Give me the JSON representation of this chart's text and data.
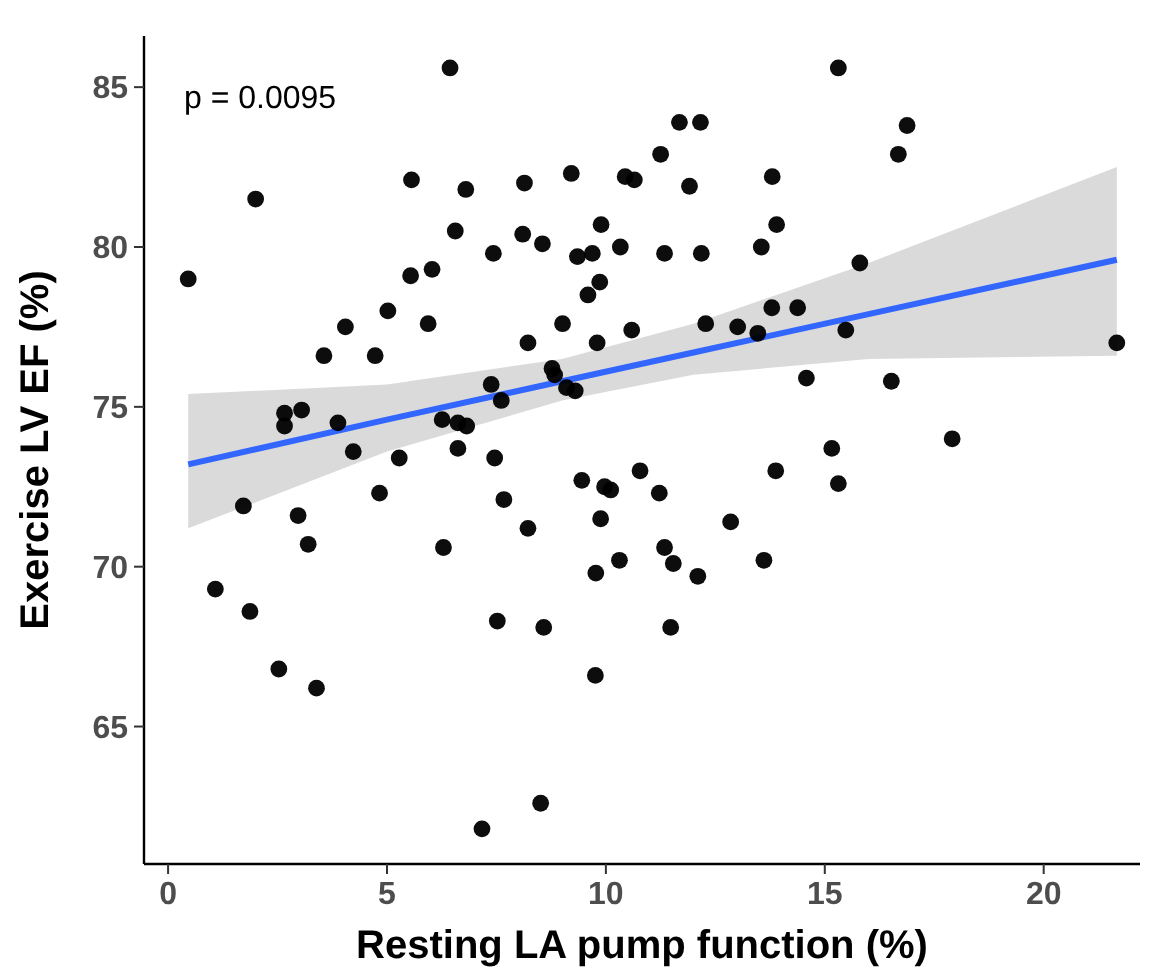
{
  "chart_data": {
    "type": "scatter",
    "xlabel": "Resting LA pump function (%)",
    "ylabel": "Exercise LV EF (%)",
    "annotations": [
      "p = 0.0095"
    ],
    "xlim": [
      -0.55,
      22.2
    ],
    "xticks": [
      0,
      5,
      10,
      15,
      20
    ],
    "ylim": [
      60.7,
      86.6
    ],
    "yticks": [
      65,
      70,
      75,
      80,
      85
    ],
    "grid": false,
    "series": [
      {
        "type": "line",
        "color": "#3366ff",
        "x": [
          0.46,
          5,
          9,
          12,
          16,
          21.67
        ],
        "values": [
          73.2,
          74.6,
          75.8,
          76.7,
          77.9,
          79.6
        ],
        "lower": [
          71.2,
          73.6,
          75.2,
          76.0,
          76.5,
          76.6
        ],
        "upper": [
          75.4,
          75.7,
          76.5,
          77.6,
          79.5,
          82.5
        ]
      },
      {
        "color": "#000000",
        "marker": "circle",
        "x": [
          0.46,
          6.44,
          2.0,
          5.56,
          6.8,
          8.14,
          9.21,
          10.44,
          10.65,
          6.56,
          8.1,
          8.55,
          7.43,
          9.89,
          9.35,
          9.69,
          10.33,
          5.54,
          6.03,
          9.86,
          9.59,
          5.02,
          4.05,
          5.94,
          3.56,
          4.73,
          8.22,
          9.01,
          9.8,
          10.59,
          7.38,
          7.61,
          8.77,
          8.83,
          9.1,
          9.3,
          2.66,
          3.05,
          2.66,
          3.88,
          6.26,
          6.62,
          6.82,
          4.23,
          5.28,
          6.62,
          7.46,
          1.72,
          4.83,
          2.97,
          3.2,
          6.29,
          7.67,
          8.22,
          9.45,
          9.97,
          10.11,
          10.78,
          9.88,
          10.31,
          9.77,
          1.08,
          1.87,
          2.53,
          3.39,
          7.52,
          8.58,
          9.76,
          8.51,
          7.17,
          15.31,
          11.68,
          12.16,
          16.88,
          16.68,
          11.25,
          11.91,
          13.8,
          13.9,
          11.34,
          12.18,
          13.55,
          15.8,
          12.28,
          13.01,
          13.47,
          13.79,
          14.38,
          15.48,
          21.67,
          14.58,
          16.52,
          15.16,
          17.91,
          13.88,
          15.31,
          11.22,
          12.85,
          11.34,
          11.54,
          12.1,
          13.61,
          11.48
        ],
        "values": [
          79.0,
          85.6,
          81.5,
          82.1,
          81.8,
          82.0,
          82.3,
          82.2,
          82.1,
          80.5,
          80.4,
          80.1,
          79.8,
          80.7,
          79.7,
          79.8,
          80.0,
          79.1,
          79.3,
          78.9,
          78.5,
          78.0,
          77.5,
          77.6,
          76.6,
          76.6,
          77.0,
          77.6,
          77.0,
          77.4,
          75.7,
          75.2,
          76.2,
          76.0,
          75.6,
          75.5,
          74.8,
          74.9,
          74.4,
          74.5,
          74.6,
          74.5,
          74.4,
          73.6,
          73.4,
          73.7,
          73.4,
          71.9,
          72.3,
          71.6,
          70.7,
          70.6,
          72.1,
          71.2,
          72.7,
          72.5,
          72.4,
          73.0,
          71.5,
          70.2,
          69.8,
          69.3,
          68.6,
          66.8,
          66.2,
          68.3,
          68.1,
          66.6,
          62.6,
          61.8,
          85.6,
          83.9,
          83.9,
          83.8,
          82.9,
          82.9,
          81.9,
          82.2,
          80.7,
          79.8,
          79.8,
          80.0,
          79.5,
          77.6,
          77.5,
          77.3,
          78.1,
          78.1,
          77.4,
          77.0,
          75.9,
          75.8,
          73.7,
          74.0,
          73.0,
          72.6,
          72.3,
          71.4,
          70.6,
          70.1,
          69.7,
          70.2,
          68.1
        ]
      }
    ]
  }
}
